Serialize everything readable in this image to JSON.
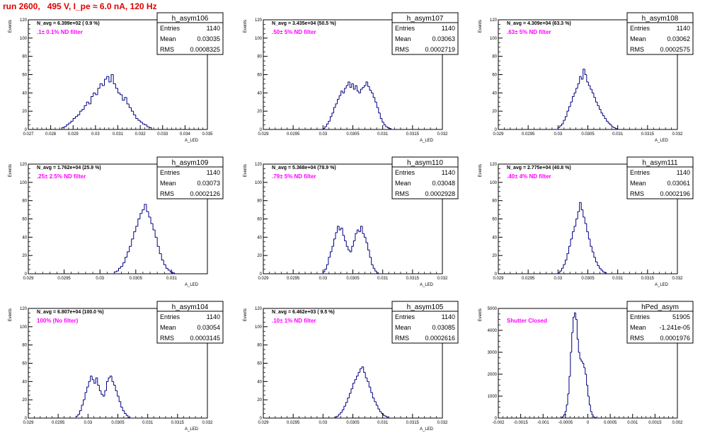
{
  "canvas": {
    "title": "run 2600,   495 V, I_pe ≈ 6.0 nA, 120 Hz"
  },
  "colors": {
    "histogram_line": "#000080",
    "annotation_magenta": "#ff00ff",
    "title_red": "#e00000",
    "frame": "#000000"
  },
  "chart_data": [
    {
      "type": "histogram",
      "name": "h_asym106",
      "ylabel": "Events",
      "xlabel": "A_LED",
      "xlim": [
        0.027,
        0.035
      ],
      "ylim": [
        0,
        120
      ],
      "x_ticks": [
        "0.027",
        "0.028",
        "0.029",
        "0.03",
        "0.031",
        "0.032",
        "0.033",
        "0.034",
        "0.035"
      ],
      "y_ticks": [
        "0",
        "20",
        "40",
        "60",
        "80",
        "100",
        "120"
      ],
      "stats": {
        "title": "h_asym106",
        "rows": [
          {
            "label": "Entries",
            "value": "1140"
          },
          {
            "label": "Mean",
            "value": "0.03035"
          },
          {
            "label": "RMS",
            "value": "0.0008325"
          }
        ]
      },
      "navg": "N_avg = 6.399e+02 ( 0.9 %)",
      "note": ".1± 0.1% ND filter",
      "bins": {
        "x_start": 0.0285,
        "width": 0.0001,
        "counts": [
          2,
          3,
          5,
          7,
          9,
          12,
          14,
          16,
          20,
          22,
          26,
          30,
          28,
          36,
          40,
          38,
          45,
          50,
          48,
          55,
          58,
          52,
          60,
          50,
          45,
          40,
          38,
          32,
          35,
          28,
          24,
          20,
          16,
          12,
          10,
          8,
          6,
          5,
          3,
          2
        ]
      }
    },
    {
      "type": "histogram",
      "name": "h_asym107",
      "ylabel": "Events",
      "xlabel": "A_LED",
      "xlim": [
        0.029,
        0.032
      ],
      "ylim": [
        0,
        120
      ],
      "x_ticks": [
        "0.029",
        "0.0295",
        "0.03",
        "0.0305",
        "0.031",
        "0.0315",
        "0.032"
      ],
      "y_ticks": [
        "0",
        "20",
        "40",
        "60",
        "80",
        "100",
        "120"
      ],
      "stats": {
        "title": "h_asym107",
        "rows": [
          {
            "label": "Entries",
            "value": "1140"
          },
          {
            "label": "Mean",
            "value": "0.03063"
          },
          {
            "label": "RMS",
            "value": "0.0002719"
          }
        ]
      },
      "navg": "N_avg = 3.435e+04 (50.5 %)",
      "note": ".50± 5% ND filter",
      "bins": {
        "x_start": 0.03,
        "width": 3e-05,
        "counts": [
          1,
          3,
          6,
          9,
          14,
          18,
          24,
          28,
          33,
          37,
          42,
          40,
          45,
          48,
          52,
          46,
          50,
          44,
          48,
          42,
          40,
          44,
          46,
          48,
          52,
          47,
          43,
          40,
          35,
          30,
          24,
          18,
          12,
          8,
          5,
          3,
          2,
          1
        ]
      }
    },
    {
      "type": "histogram",
      "name": "h_asym108",
      "ylabel": "Events",
      "xlabel": "A_LED",
      "xlim": [
        0.029,
        0.032
      ],
      "ylim": [
        0,
        120
      ],
      "x_ticks": [
        "0.029",
        "0.0295",
        "0.03",
        "0.0305",
        "0.031",
        "0.0315",
        "0.032"
      ],
      "y_ticks": [
        "0",
        "20",
        "40",
        "60",
        "80",
        "100",
        "120"
      ],
      "stats": {
        "title": "h_asym108",
        "rows": [
          {
            "label": "Entries",
            "value": "1140"
          },
          {
            "label": "Mean",
            "value": "0.03062"
          },
          {
            "label": "RMS",
            "value": "0.0002575"
          }
        ]
      },
      "navg": "N_avg = 4.309e+04 (63.3 %)",
      "note": ".63± 5% ND filter",
      "bins": {
        "x_start": 0.03,
        "width": 3e-05,
        "counts": [
          2,
          4,
          6,
          10,
          14,
          20,
          25,
          30,
          36,
          40,
          45,
          50,
          58,
          55,
          66,
          60,
          52,
          48,
          44,
          40,
          35,
          30,
          26,
          22,
          18,
          15,
          12,
          9,
          7,
          5,
          3,
          2,
          1
        ]
      }
    },
    {
      "type": "histogram",
      "name": "h_asym109",
      "ylabel": "Events",
      "xlabel": "A_LED",
      "xlim": [
        0.029,
        0.0315
      ],
      "ylim": [
        0,
        120
      ],
      "x_ticks": [
        "0.029",
        "0.0295",
        "0.03",
        "0.0305",
        "0.031"
      ],
      "y_ticks": [
        "0",
        "20",
        "40",
        "60",
        "80",
        "100",
        "120"
      ],
      "stats": {
        "title": "h_asym109",
        "rows": [
          {
            "label": "Entries",
            "value": "1140"
          },
          {
            "label": "Mean",
            "value": "0.03073"
          },
          {
            "label": "RMS",
            "value": "0.0002126"
          }
        ]
      },
      "navg": "N_avg = 1.762e+04 (25.9 %)",
      "note": ".25± 2.5% ND filter",
      "bins": {
        "x_start": 0.0302,
        "width": 3e-05,
        "counts": [
          2,
          3,
          6,
          8,
          12,
          18,
          24,
          30,
          38,
          46,
          52,
          60,
          66,
          70,
          76,
          68,
          62,
          55,
          48,
          40,
          30,
          22,
          15,
          10,
          6,
          4,
          2,
          1
        ]
      }
    },
    {
      "type": "histogram",
      "name": "h_asym110",
      "ylabel": "Events",
      "xlabel": "A_LED",
      "xlim": [
        0.029,
        0.032
      ],
      "ylim": [
        0,
        120
      ],
      "x_ticks": [
        "0.029",
        "0.0295",
        "0.03",
        "0.0305",
        "0.031",
        "0.0315",
        "0.032"
      ],
      "y_ticks": [
        "0",
        "20",
        "40",
        "60",
        "80",
        "100",
        "120"
      ],
      "stats": {
        "title": "h_asym110",
        "rows": [
          {
            "label": "Entries",
            "value": "1140"
          },
          {
            "label": "Mean",
            "value": "0.03048"
          },
          {
            "label": "RMS",
            "value": "0.0002928"
          }
        ]
      },
      "navg": "N_avg = 5.368e+04 (78.9 %)",
      "note": ".79± 5% ND filter",
      "bins": {
        "x_start": 0.03,
        "width": 3e-05,
        "counts": [
          2,
          5,
          10,
          18,
          24,
          30,
          38,
          45,
          52,
          48,
          50,
          42,
          36,
          30,
          26,
          24,
          30,
          36,
          44,
          48,
          46,
          52,
          44,
          40,
          34,
          26,
          18,
          10,
          6,
          3,
          1
        ]
      }
    },
    {
      "type": "histogram",
      "name": "h_asym111",
      "ylabel": "Events",
      "xlabel": "A_LED",
      "xlim": [
        0.029,
        0.032
      ],
      "ylim": [
        0,
        120
      ],
      "x_ticks": [
        "0.029",
        "0.0295",
        "0.03",
        "0.0305",
        "0.031",
        "0.0315",
        "0.032"
      ],
      "y_ticks": [
        "0",
        "20",
        "40",
        "60",
        "80",
        "100",
        "120"
      ],
      "stats": {
        "title": "h_asym111",
        "rows": [
          {
            "label": "Entries",
            "value": "1140"
          },
          {
            "label": "Mean",
            "value": "0.03061"
          },
          {
            "label": "RMS",
            "value": "0.0002196"
          }
        ]
      },
      "navg": "N_avg = 2.775e+04 (40.8 %)",
      "note": ".40± 4% ND filter",
      "bins": {
        "x_start": 0.03,
        "width": 3e-05,
        "counts": [
          1,
          3,
          6,
          10,
          15,
          22,
          30,
          38,
          46,
          52,
          60,
          68,
          78,
          70,
          62,
          55,
          46,
          38,
          30,
          24,
          18,
          13,
          9,
          6,
          4,
          2,
          1
        ]
      }
    },
    {
      "type": "histogram",
      "name": "h_asym104",
      "ylabel": "Events",
      "xlabel": "A_LED",
      "xlim": [
        0.029,
        0.032
      ],
      "ylim": [
        0,
        120
      ],
      "x_ticks": [
        "0.029",
        "0.0295",
        "0.03",
        "0.0305",
        "0.031",
        "0.0315",
        "0.032"
      ],
      "y_ticks": [
        "0",
        "20",
        "40",
        "60",
        "80",
        "100",
        "120"
      ],
      "stats": {
        "title": "h_asym104",
        "rows": [
          {
            "label": "Entries",
            "value": "1140"
          },
          {
            "label": "Mean",
            "value": "0.03054"
          },
          {
            "label": "RMS",
            "value": "0.0003145"
          }
        ]
      },
      "navg": "N_avg = 6.807e+04 (100.0 %)",
      "note": "100% (No filter)",
      "bins": {
        "x_start": 0.0298,
        "width": 3e-05,
        "counts": [
          2,
          4,
          8,
          14,
          20,
          28,
          34,
          40,
          46,
          42,
          38,
          44,
          36,
          30,
          26,
          24,
          30,
          40,
          44,
          46,
          40,
          36,
          30,
          24,
          18,
          12,
          8,
          5,
          3,
          1
        ]
      }
    },
    {
      "type": "histogram",
      "name": "h_asym105",
      "ylabel": "Events",
      "xlabel": "A_LED",
      "xlim": [
        0.029,
        0.032
      ],
      "ylim": [
        0,
        120
      ],
      "x_ticks": [
        "0.029",
        "0.0295",
        "0.03",
        "0.0305",
        "0.031",
        "0.0315",
        "0.032"
      ],
      "y_ticks": [
        "0",
        "20",
        "40",
        "60",
        "80",
        "100",
        "120"
      ],
      "stats": {
        "title": "h_asym105",
        "rows": [
          {
            "label": "Entries",
            "value": "1140"
          },
          {
            "label": "Mean",
            "value": "0.03085"
          },
          {
            "label": "RMS",
            "value": "0.0002616"
          }
        ]
      },
      "navg": "N_avg = 6.462e+03 ( 9.5 %)",
      "note": ".10± 1% ND filter",
      "bins": {
        "x_start": 0.0302,
        "width": 3e-05,
        "counts": [
          1,
          2,
          4,
          6,
          9,
          13,
          17,
          22,
          27,
          32,
          38,
          42,
          46,
          50,
          54,
          56,
          50,
          44,
          40,
          34,
          28,
          22,
          18,
          14,
          10,
          7,
          5,
          3,
          2,
          1
        ]
      }
    },
    {
      "type": "histogram",
      "name": "hPed_asym",
      "ylabel": "Events",
      "xlabel": "",
      "xlim": [
        -0.002,
        0.002
      ],
      "ylim": [
        0,
        5000
      ],
      "x_ticks": [
        "-0.002",
        "-0.0015",
        "-0.001",
        "-0.0005",
        "0",
        "0.0005",
        "0.001",
        "0.0015",
        "0.002"
      ],
      "y_ticks": [
        "0",
        "1000",
        "2000",
        "3000",
        "4000",
        "5000"
      ],
      "stats": {
        "title": "hPed_asym",
        "rows": [
          {
            "label": "Entries",
            "value": "51905"
          },
          {
            "label": "Mean",
            "value": "-1.241e-05"
          },
          {
            "label": "RMS",
            "value": "0.0001976"
          }
        ]
      },
      "navg": "",
      "note": "Shutter Closed",
      "bins": {
        "x_start": -0.0006,
        "width": 3e-05,
        "counts": [
          20,
          60,
          150,
          300,
          600,
          1100,
          1900,
          3000,
          3900,
          4600,
          4800,
          4500,
          3600,
          3000,
          2700,
          2600,
          2500,
          2300,
          2000,
          1500,
          1000,
          600,
          300,
          150,
          60,
          20
        ]
      }
    }
  ]
}
